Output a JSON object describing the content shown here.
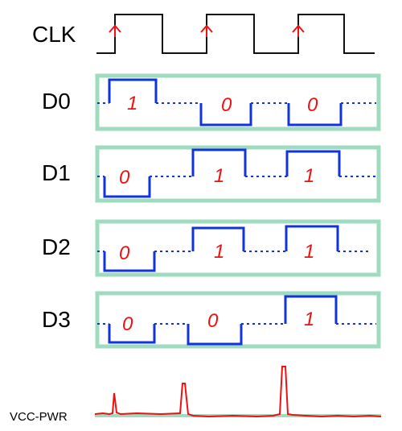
{
  "diagram": {
    "clock": {
      "label": "CLK",
      "rising_edges": 3
    },
    "data_lines": [
      {
        "label": "D0",
        "bits": [
          "1",
          "0",
          "0"
        ]
      },
      {
        "label": "D1",
        "bits": [
          "0",
          "1",
          "1"
        ]
      },
      {
        "label": "D2",
        "bits": [
          "0",
          "1",
          "1"
        ]
      },
      {
        "label": "D3",
        "bits": [
          "0",
          "0",
          "1"
        ]
      }
    ],
    "power": {
      "label": "VCC-PWR"
    }
  },
  "colors": {
    "clock": "#111111",
    "edge_marker": "#ee1111",
    "data_trace": "#1133dd",
    "lane_border": "#9fdcbf",
    "bit_text": "#ee1111",
    "power_trace": "#ee1111"
  }
}
